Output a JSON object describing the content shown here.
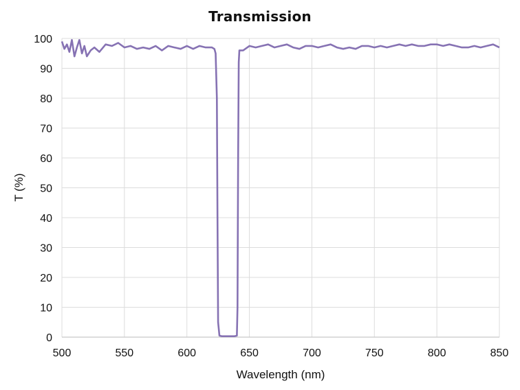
{
  "chart_data": {
    "type": "line",
    "title": "Transmission",
    "xlabel": "Wavelength (nm)",
    "ylabel": "T (%)",
    "xlim": [
      500,
      850
    ],
    "ylim": [
      0,
      100
    ],
    "x_ticks": [
      500,
      550,
      600,
      650,
      700,
      750,
      800,
      850
    ],
    "y_ticks": [
      0,
      10,
      20,
      30,
      40,
      50,
      60,
      70,
      80,
      90,
      100
    ],
    "grid": true,
    "legend": null,
    "line_color": "#8672b3",
    "series": [
      {
        "name": "Transmission",
        "x": [
          500,
          502,
          504,
          506,
          508,
          510,
          512,
          514,
          516,
          518,
          520,
          523,
          526,
          530,
          535,
          540,
          545,
          550,
          555,
          560,
          565,
          570,
          575,
          580,
          585,
          590,
          595,
          600,
          605,
          610,
          615,
          620,
          622,
          623,
          624,
          624.5,
          625,
          626,
          628,
          630,
          635,
          638,
          640,
          640.5,
          641,
          641.5,
          642,
          645,
          650,
          655,
          660,
          665,
          670,
          675,
          680,
          685,
          690,
          695,
          700,
          705,
          710,
          715,
          720,
          725,
          730,
          735,
          740,
          745,
          750,
          755,
          760,
          765,
          770,
          775,
          780,
          785,
          790,
          795,
          800,
          805,
          810,
          815,
          820,
          825,
          830,
          835,
          840,
          845,
          850
        ],
        "y": [
          99,
          96.5,
          98,
          95.5,
          99.5,
          94,
          97,
          99.5,
          95,
          97.5,
          94,
          96,
          97,
          95.5,
          98,
          97.5,
          98.5,
          97,
          97.5,
          96.5,
          97,
          96.5,
          97.5,
          96,
          97.5,
          97,
          96.5,
          97.5,
          96.5,
          97.5,
          97,
          97,
          96.5,
          95,
          80,
          40,
          5,
          0.5,
          0.3,
          0.3,
          0.3,
          0.3,
          0.5,
          10,
          60,
          92,
          96,
          96,
          97.5,
          97,
          97.5,
          98,
          97,
          97.5,
          98,
          97,
          96.5,
          97.5,
          97.5,
          97,
          97.5,
          98,
          97,
          96.5,
          97,
          96.5,
          97.5,
          97.5,
          97,
          97.5,
          97,
          97.5,
          98,
          97.5,
          98,
          97.5,
          97.5,
          98,
          98,
          97.5,
          98,
          97.5,
          97,
          97,
          97.5,
          97,
          97.5,
          98,
          97
        ]
      }
    ]
  }
}
